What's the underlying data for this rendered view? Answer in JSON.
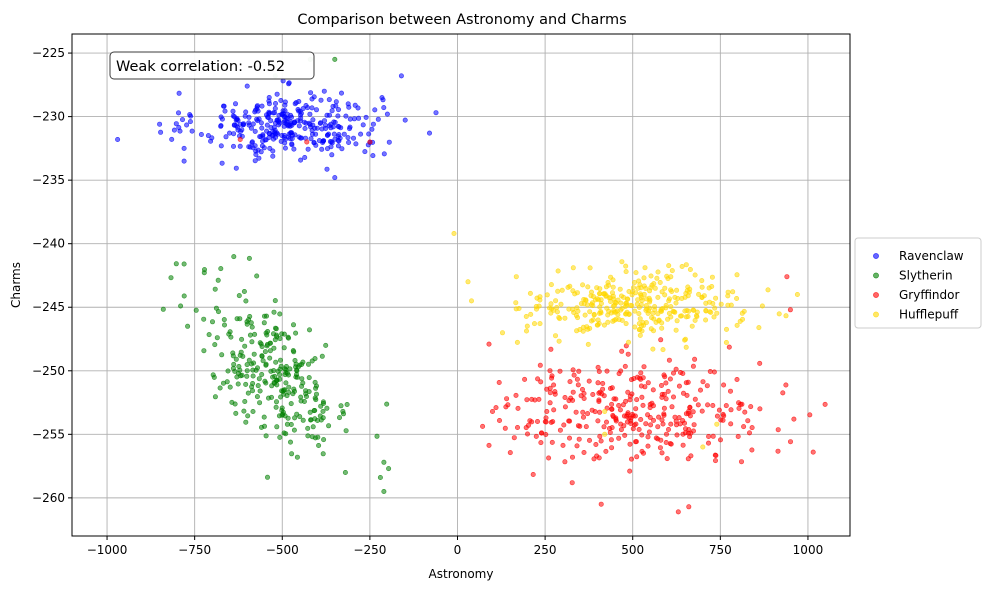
{
  "chart_data": {
    "type": "scatter",
    "title": "Comparison between Astronomy and Charms",
    "xlabel": "Astronomy",
    "ylabel": "Charms",
    "xlim": [
      -1100,
      1120
    ],
    "ylim": [
      -263,
      -223.5
    ],
    "xticks": [
      -1000,
      -750,
      -500,
      -250,
      0,
      250,
      500,
      750,
      1000
    ],
    "xtick_labels": [
      "−1000",
      "−750",
      "−500",
      "−250",
      "0",
      "250",
      "500",
      "750",
      "1000"
    ],
    "yticks": [
      -225,
      -230,
      -235,
      -240,
      -245,
      -250,
      -255,
      -260
    ],
    "ytick_labels": [
      "−225",
      "−230",
      "−235",
      "−240",
      "−245",
      "−250",
      "−255",
      "−260"
    ],
    "grid": true,
    "legend_placement": "outside-right",
    "annotation": "Weak correlation: -0.52",
    "series": [
      {
        "name": "Ravenclaw",
        "color": "#0000ff",
        "cluster": {
          "x_mean": -480,
          "x_sd": 130,
          "y_mean": -230.7,
          "y_sd": 1.3,
          "n": 320
        },
        "points": [
          [
            -970,
            -231.8
          ],
          [
            -850,
            -230.6
          ],
          [
            -780,
            -232.5
          ],
          [
            -780,
            -233.5
          ],
          [
            -350,
            -234.8
          ],
          [
            -160,
            -226.8
          ],
          [
            -80,
            -231.3
          ],
          [
            -200,
            -229.8
          ],
          [
            -240,
            -230.6
          ],
          [
            -600,
            -227.6
          ],
          [
            -380,
            -228.0
          ]
        ]
      },
      {
        "name": "Slytherin",
        "color": "#008000",
        "cluster": {
          "x_mean": -520,
          "x_sd": 110,
          "y_mean": -250.2,
          "y_sd": 2.6,
          "n": 280,
          "slope": -0.016
        },
        "points": [
          [
            -780,
            -241.6
          ],
          [
            -790,
            -244.9
          ],
          [
            -770,
            -246.5
          ],
          [
            -420,
            -225.5
          ],
          [
            -350,
            -225.5
          ],
          [
            -520,
            -226.8
          ],
          [
            -220,
            -258.4
          ],
          [
            -210,
            -259.5
          ],
          [
            -210,
            -257.2
          ],
          [
            -320,
            -258.0
          ]
        ]
      },
      {
        "name": "Gryffindor",
        "color": "#ff0000",
        "cluster": {
          "x_mean": 510,
          "x_sd": 190,
          "y_mean": -253.2,
          "y_sd": 2.0,
          "n": 330
        },
        "points": [
          [
            1015,
            -256.4
          ],
          [
            960,
            -253.8
          ],
          [
            940,
            -242.6
          ],
          [
            950,
            -245.2
          ],
          [
            90,
            -247.9
          ],
          [
            100,
            -253.2
          ],
          [
            110,
            -252.9
          ],
          [
            140,
            -252.2
          ],
          [
            630,
            -261.1
          ],
          [
            410,
            -260.5
          ],
          [
            660,
            -260.7
          ],
          [
            -620,
            -231.8
          ],
          [
            -430,
            -232.0
          ],
          [
            -250,
            -232.0
          ]
        ]
      },
      {
        "name": "Hufflepuff",
        "color": "#ffd700",
        "cluster": {
          "x_mean": 500,
          "x_sd": 150,
          "y_mean": -244.8,
          "y_sd": 1.3,
          "n": 330
        },
        "points": [
          [
            -10,
            -239.2
          ],
          [
            30,
            -243.0
          ],
          [
            40,
            -244.5
          ],
          [
            870,
            -244.9
          ],
          [
            970,
            -244.0
          ],
          [
            860,
            -246.6
          ],
          [
            420,
            -253.2
          ],
          [
            740,
            -254.2
          ],
          [
            420,
            -255.0
          ],
          [
            700,
            -256.0
          ]
        ]
      }
    ]
  }
}
